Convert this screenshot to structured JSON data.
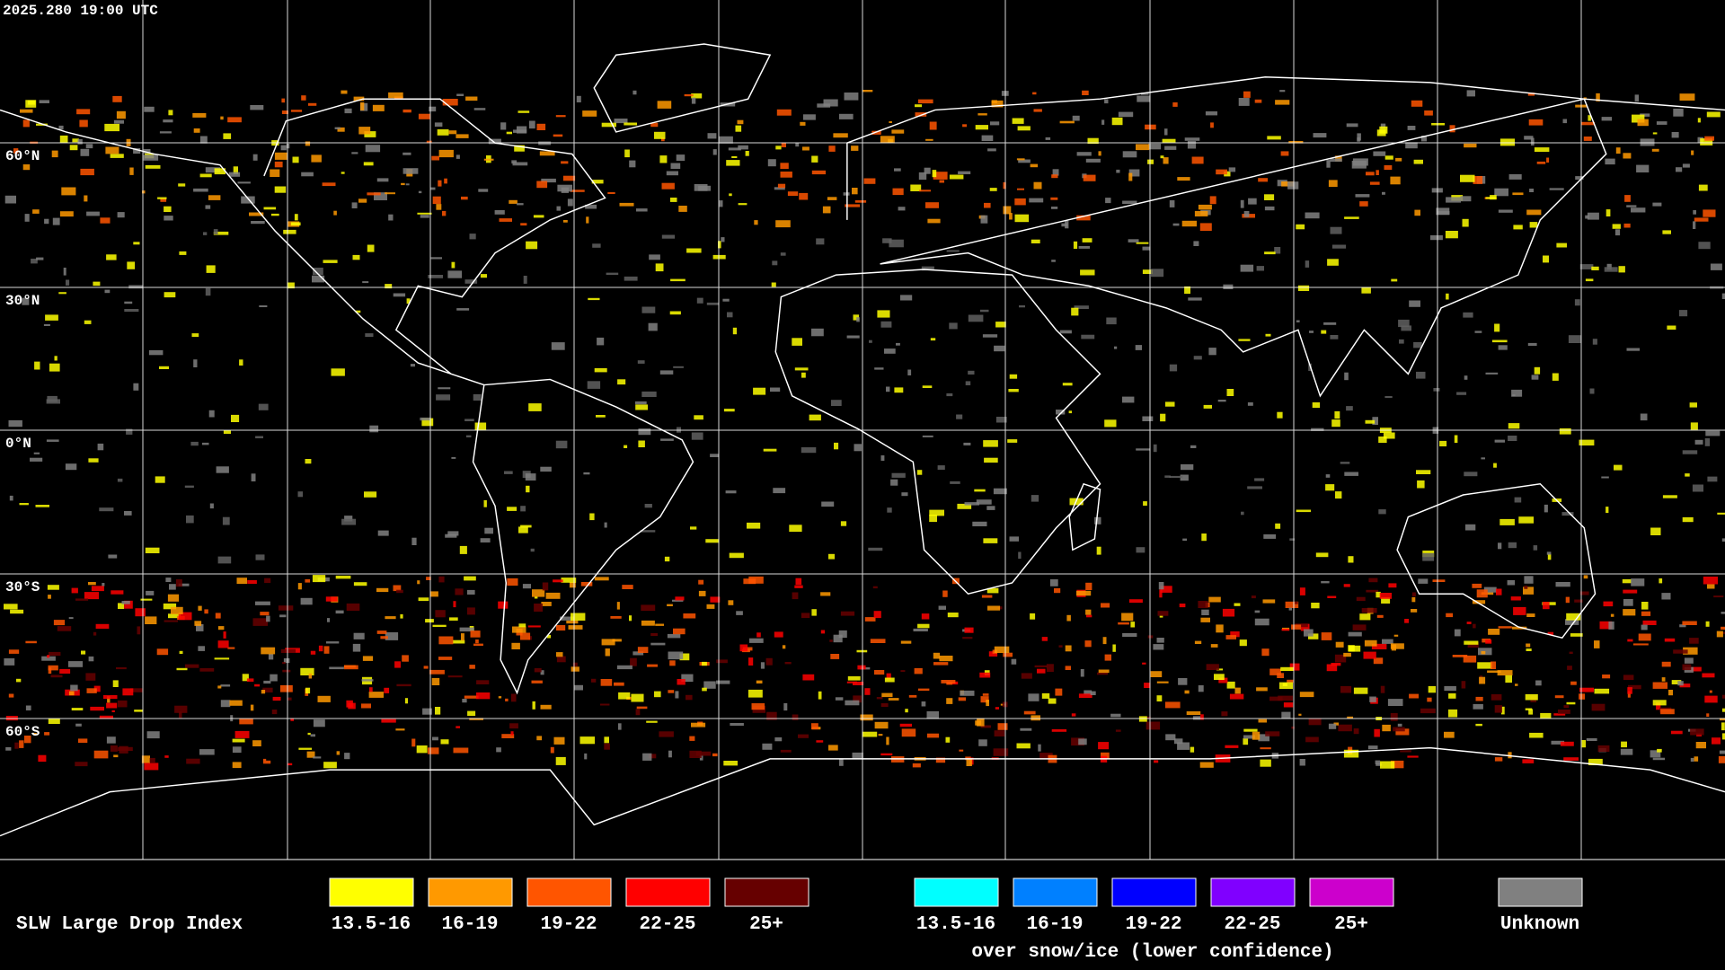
{
  "timestamp": "2025.280 19:00 UTC",
  "latitude_labels": [
    "60°N",
    "30°N",
    "0°N",
    "30°S",
    "60°S"
  ],
  "legend": {
    "title": "SLW Large Drop Index",
    "items": [
      {
        "label": "13.5-16",
        "color": "#ffff00"
      },
      {
        "label": "16-19",
        "color": "#ff9900"
      },
      {
        "label": "19-22",
        "color": "#ff5500"
      },
      {
        "label": "22-25",
        "color": "#ff0000"
      },
      {
        "label": "25+",
        "color": "#660000"
      }
    ],
    "snow_items": [
      {
        "label": "13.5-16",
        "color": "#00ffff"
      },
      {
        "label": "16-19",
        "color": "#0080ff"
      },
      {
        "label": "19-22",
        "color": "#0000ff"
      },
      {
        "label": "22-25",
        "color": "#8000ff"
      },
      {
        "label": "25+",
        "color": "#cc00cc"
      }
    ],
    "snow_caption": "over snow/ice (lower confidence)",
    "unknown": {
      "label": "Unknown",
      "color": "#808080"
    }
  }
}
